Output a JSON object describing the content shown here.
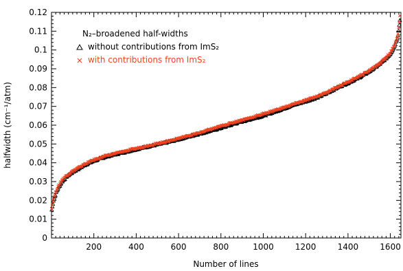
{
  "chart_data": {
    "type": "scatter",
    "xlabel": "Number of lines",
    "ylabel": "halfwidth (cm⁻¹/atm)",
    "xlim": [
      0,
      1650
    ],
    "ylim": [
      0,
      0.12
    ],
    "x_ticks": [
      200,
      400,
      600,
      800,
      1000,
      1200,
      1400,
      1600
    ],
    "y_ticks": [
      0,
      0.01,
      0.02,
      0.03,
      0.04,
      0.05,
      0.06,
      0.07,
      0.08,
      0.09,
      0.1,
      0.11,
      0.12
    ],
    "legend": {
      "title": "N₂–broadened half-widths",
      "placement": "top-left"
    },
    "series": [
      {
        "name": "without contributions from ImS₂",
        "marker": "triangle",
        "color": "#000000",
        "x": [
          1,
          10,
          25,
          50,
          75,
          100,
          130,
          160,
          200,
          250,
          300,
          350,
          400,
          450,
          500,
          550,
          600,
          650,
          700,
          750,
          800,
          850,
          900,
          950,
          1000,
          1050,
          1100,
          1150,
          1200,
          1250,
          1300,
          1350,
          1400,
          1450,
          1500,
          1550,
          1580,
          1600,
          1620,
          1635,
          1645
        ],
        "values": [
          0.015,
          0.02,
          0.025,
          0.03,
          0.033,
          0.035,
          0.037,
          0.039,
          0.041,
          0.043,
          0.0445,
          0.0458,
          0.0472,
          0.0485,
          0.0497,
          0.051,
          0.0525,
          0.054,
          0.0555,
          0.057,
          0.0585,
          0.0603,
          0.062,
          0.0635,
          0.065,
          0.067,
          0.069,
          0.071,
          0.0727,
          0.0745,
          0.077,
          0.08,
          0.0825,
          0.0852,
          0.0885,
          0.0925,
          0.0955,
          0.098,
          0.102,
          0.107,
          0.116
        ]
      },
      {
        "name": "with contributions from ImS₂",
        "marker": "cross",
        "color": "#ee4422",
        "x": [
          1,
          10,
          25,
          50,
          75,
          100,
          130,
          160,
          200,
          250,
          300,
          350,
          400,
          450,
          500,
          550,
          600,
          650,
          700,
          750,
          800,
          850,
          900,
          950,
          1000,
          1050,
          1100,
          1150,
          1200,
          1250,
          1300,
          1350,
          1400,
          1450,
          1500,
          1550,
          1580,
          1600,
          1620,
          1635,
          1645
        ],
        "values": [
          0.016,
          0.021,
          0.026,
          0.031,
          0.0335,
          0.0355,
          0.0375,
          0.0395,
          0.0415,
          0.0435,
          0.045,
          0.0463,
          0.0476,
          0.049,
          0.0502,
          0.0515,
          0.053,
          0.0545,
          0.056,
          0.0578,
          0.0595,
          0.0612,
          0.0628,
          0.0643,
          0.066,
          0.0678,
          0.0695,
          0.0715,
          0.0732,
          0.0752,
          0.0775,
          0.0803,
          0.083,
          0.0858,
          0.089,
          0.093,
          0.096,
          0.0985,
          0.1025,
          0.108,
          0.118
        ]
      }
    ]
  }
}
